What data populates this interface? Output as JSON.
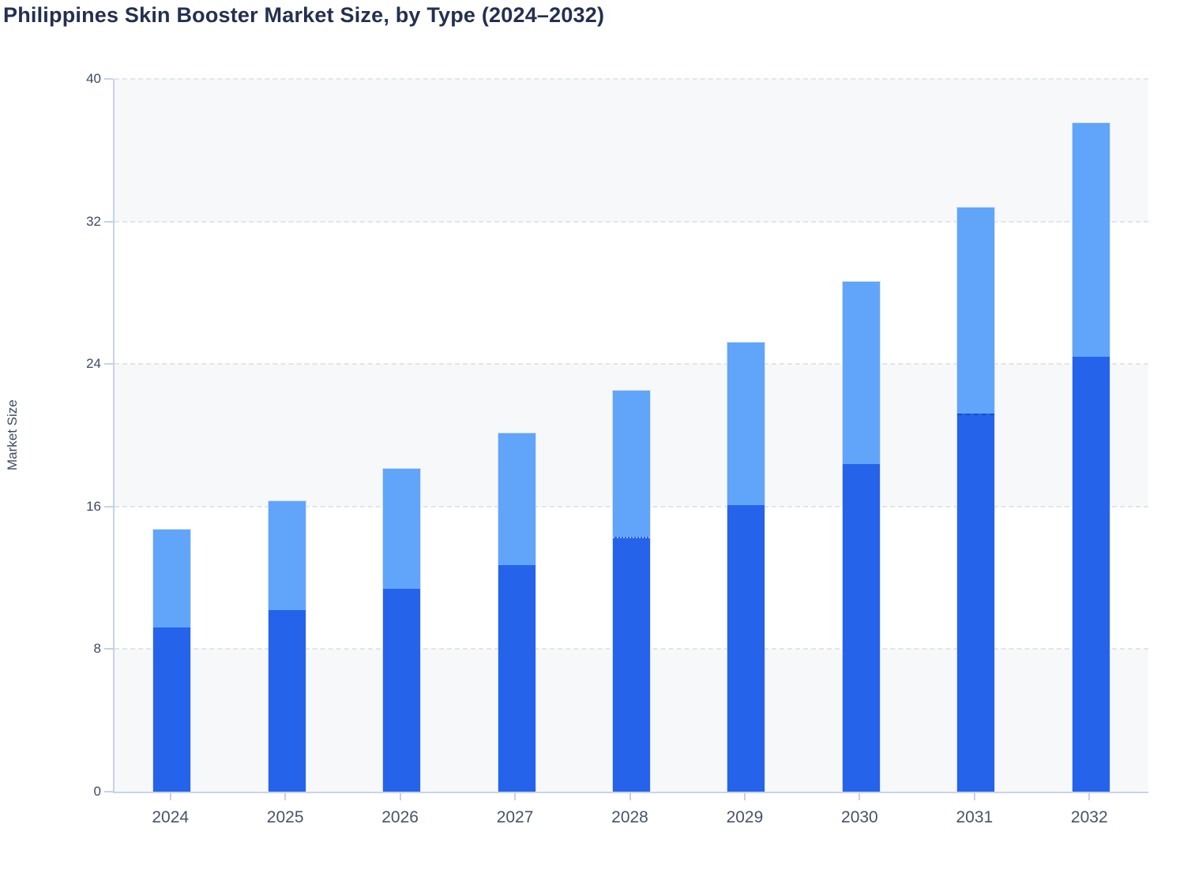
{
  "header": {
    "title": "Philippines Skin Booster Market Size, by Type (2024–2032)"
  },
  "chart_data": {
    "type": "bar",
    "stacked": true,
    "title": "Philippines Skin Booster Market Size, by Type (2024–2032)",
    "xlabel": "",
    "ylabel": "Market Size",
    "categories": [
      "2024",
      "2025",
      "2026",
      "2027",
      "2028",
      "2029",
      "2030",
      "2031",
      "2032"
    ],
    "series": [
      {
        "name": "bottom-segment-dark-blue",
        "color": "#2563eb",
        "values": [
          9.2,
          10.2,
          11.4,
          12.7,
          14.3,
          16.1,
          18.4,
          21.2,
          24.4
        ]
      },
      {
        "name": "top-segment-light-blue",
        "color": "#60a5fa",
        "values": [
          5.5,
          6.1,
          6.7,
          7.4,
          8.2,
          9.1,
          10.2,
          11.6,
          13.1
        ]
      }
    ],
    "totals": [
      14.7,
      16.3,
      18.1,
      20.1,
      22.5,
      25.2,
      28.6,
      32.8,
      37.5
    ],
    "ylim": [
      0,
      40
    ],
    "yticks": [
      0,
      8,
      16,
      24,
      32,
      40
    ],
    "grid": "horizontal dashed gridlines at yticks",
    "bands": "alternating horizontal fill bands every 8 units, shaded from 0",
    "legend": "none",
    "dotted_boundaries": [
      {
        "year": "2028",
        "tone": "light"
      },
      {
        "year": "2031",
        "tone": "dark"
      }
    ]
  },
  "colors": {
    "title_text": "#24304f",
    "axis_text": "#3d4963",
    "x_tick_text": "#47536b",
    "axis_line": "#c6d2ec",
    "gridline": "#e2e5ea",
    "band_fill": "#f7f8fa",
    "bar_dark": "#2563eb",
    "bar_light": "#60a5fa",
    "bar_outline": "#cbd8f0",
    "background": "#ffffff"
  }
}
